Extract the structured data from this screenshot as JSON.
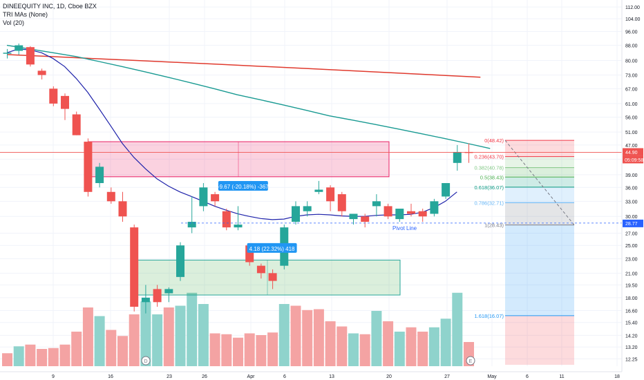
{
  "legend": {
    "title": "DINEEQUITY INC, 1D, Cboe BZX",
    "indicator": "TRI MAs (None)",
    "volume": "Vol (20)"
  },
  "price_axis": {
    "labels": [
      "112.00",
      "104.00",
      "96.00",
      "88.00",
      "80.00",
      "73.00",
      "67.00",
      "61.00",
      "56.00",
      "51.00",
      "47.00",
      "43.00",
      "39.00",
      "36.00",
      "33.00",
      "30.00",
      "27.00",
      "25.00",
      "23.00",
      "21.00",
      "19.50",
      "18.00",
      "16.60",
      "15.40",
      "14.20",
      "13.20",
      "12.25"
    ],
    "last_price": "44.90",
    "countdown": "05:09:58",
    "pivot_price": "28.77"
  },
  "time_axis": {
    "labels": [
      "9",
      "16",
      "23",
      "26",
      "Apr",
      "6",
      "13",
      "20",
      "27",
      "May",
      "6",
      "11",
      "18"
    ]
  },
  "annotations": {
    "measure_down": "-9.67 (-20.18%) -367",
    "measure_up": "4.18 (22.32%) 418",
    "pivot_line": "Pivot Line",
    "event_d": "D",
    "event_e": "E"
  },
  "fib_levels": [
    {
      "label": "0(48.42)"
    },
    {
      "label": "0.236(43.70)"
    },
    {
      "label": "0.382(40.78)"
    },
    {
      "label": "0.5(38.43)"
    },
    {
      "label": "0.618(36.07)"
    },
    {
      "label": "0.786(32.71)"
    },
    {
      "label": "1(28.43)"
    },
    {
      "label": "1.618(16.07)"
    }
  ],
  "colors": {
    "up": "#26a69a",
    "down": "#ef5350",
    "vol_up": "#8fd3cc",
    "vol_down": "#f4a3a3",
    "ma_blue": "#1e22aa",
    "ma_teal": "#199a92",
    "ma_red": "#e0392d",
    "label_blue": "#2196f3"
  },
  "chart_data": {
    "type": "candlestick",
    "title": "DINEEQUITY INC, 1D, Cboe BZX",
    "y_scale": "log",
    "ylim": [
      11.8,
      116
    ],
    "candles": [
      {
        "d": "Mar 2",
        "o": 84.0,
        "h": 86.0,
        "l": 81.0,
        "c": 84.0
      },
      {
        "d": "Mar 3",
        "o": 85.0,
        "h": 89.0,
        "l": 83.0,
        "c": 88.0
      },
      {
        "d": "Mar 4",
        "o": 87.0,
        "h": 87.5,
        "l": 77.0,
        "c": 78.0
      },
      {
        "d": "Mar 5",
        "o": 75.0,
        "h": 76.0,
        "l": 71.0,
        "c": 73.0
      },
      {
        "d": "Mar 6",
        "o": 67.0,
        "h": 68.0,
        "l": 60.0,
        "c": 61.0
      },
      {
        "d": "Mar 9",
        "o": 64.0,
        "h": 65.0,
        "l": 55.0,
        "c": 59.0
      },
      {
        "d": "Mar 10",
        "o": 57.0,
        "h": 58.0,
        "l": 50.0,
        "c": 50.0
      },
      {
        "d": "Mar 11",
        "o": 48.0,
        "h": 49.0,
        "l": 34.0,
        "c": 35.0
      },
      {
        "d": "Mar 12",
        "o": 37.0,
        "h": 42.0,
        "l": 36.0,
        "c": 41.0
      },
      {
        "d": "Mar 13",
        "o": 35.0,
        "h": 36.0,
        "l": 32.5,
        "c": 33.0
      },
      {
        "d": "Mar 16",
        "o": 33.0,
        "h": 35.0,
        "l": 29.0,
        "c": 30.0
      },
      {
        "d": "Mar 17",
        "o": 28.0,
        "h": 28.5,
        "l": 16.5,
        "c": 17.0
      },
      {
        "d": "Mar 18",
        "o": 17.5,
        "h": 19.5,
        "l": 16.3,
        "c": 18.0
      },
      {
        "d": "Mar 19",
        "o": 19.0,
        "h": 19.5,
        "l": 17.0,
        "c": 17.5
      },
      {
        "d": "Mar 20",
        "o": 18.5,
        "h": 19.2,
        "l": 17.5,
        "c": 19.0
      },
      {
        "d": "Mar 23",
        "o": 20.5,
        "h": 25.5,
        "l": 20.0,
        "c": 25.0
      },
      {
        "d": "Mar 24",
        "o": 28.0,
        "h": 34.0,
        "l": 27.0,
        "c": 29.0
      },
      {
        "d": "Mar 25",
        "o": 32.0,
        "h": 37.0,
        "l": 31.0,
        "c": 36.0
      },
      {
        "d": "Mar 26",
        "o": 34.5,
        "h": 35.0,
        "l": 32.0,
        "c": 33.0
      },
      {
        "d": "Mar 27",
        "o": 31.0,
        "h": 31.5,
        "l": 27.5,
        "c": 28.0
      },
      {
        "d": "Mar 30",
        "o": 28.0,
        "h": 32.0,
        "l": 27.5,
        "c": 28.5
      },
      {
        "d": "Mar 31",
        "o": 25.0,
        "h": 25.3,
        "l": 22.0,
        "c": 22.5
      },
      {
        "d": "Apr 1",
        "o": 22.0,
        "h": 22.3,
        "l": 20.3,
        "c": 21.0
      },
      {
        "d": "Apr 2",
        "o": 21.0,
        "h": 21.5,
        "l": 19.0,
        "c": 20.0
      },
      {
        "d": "Apr 3",
        "o": 22.0,
        "h": 28.5,
        "l": 21.5,
        "c": 28.0
      },
      {
        "d": "Apr 6",
        "o": 29.0,
        "h": 33.0,
        "l": 28.5,
        "c": 32.0
      },
      {
        "d": "Apr 7",
        "o": 31.0,
        "h": 33.0,
        "l": 30.0,
        "c": 32.0
      },
      {
        "d": "Apr 8",
        "o": 35.0,
        "h": 37.5,
        "l": 34.5,
        "c": 35.5
      },
      {
        "d": "Apr 9",
        "o": 36.0,
        "h": 36.5,
        "l": 31.0,
        "c": 33.0
      },
      {
        "d": "Apr 13",
        "o": 34.5,
        "h": 35.0,
        "l": 30.0,
        "c": 31.0
      },
      {
        "d": "Apr 14",
        "o": 29.5,
        "h": 30.0,
        "l": 28.5,
        "c": 30.5
      },
      {
        "d": "Apr 15",
        "o": 30.0,
        "h": 30.5,
        "l": 28.0,
        "c": 29.0
      },
      {
        "d": "Apr 16",
        "o": 32.0,
        "h": 34.5,
        "l": 30.0,
        "c": 33.0
      },
      {
        "d": "Apr 17",
        "o": 32.0,
        "h": 32.5,
        "l": 29.5,
        "c": 30.0
      },
      {
        "d": "Apr 20",
        "o": 29.5,
        "h": 31.0,
        "l": 29.0,
        "c": 31.5
      },
      {
        "d": "Apr 21",
        "o": 31.0,
        "h": 32.5,
        "l": 30.0,
        "c": 30.5
      },
      {
        "d": "Apr 22",
        "o": 31.0,
        "h": 31.5,
        "l": 29.0,
        "c": 30.0
      },
      {
        "d": "Apr 23",
        "o": 30.5,
        "h": 33.5,
        "l": 30.0,
        "c": 33.0
      },
      {
        "d": "Apr 24",
        "o": 34.0,
        "h": 37.0,
        "l": 33.5,
        "c": 37.0
      },
      {
        "d": "Apr 27",
        "o": 42.0,
        "h": 47.0,
        "l": 40.0,
        "c": 45.0
      },
      {
        "d": "Apr 28",
        "o": 45.0,
        "h": 47.5,
        "l": 42.0,
        "c": 44.9
      }
    ],
    "volume": [
      {
        "v": 1.5,
        "up": false
      },
      {
        "v": 2.3,
        "up": true
      },
      {
        "v": 2.5,
        "up": false
      },
      {
        "v": 2.0,
        "up": false
      },
      {
        "v": 2.1,
        "up": false
      },
      {
        "v": 2.5,
        "up": false
      },
      {
        "v": 4.0,
        "up": false
      },
      {
        "v": 6.8,
        "up": false
      },
      {
        "v": 5.8,
        "up": true
      },
      {
        "v": 4.2,
        "up": false
      },
      {
        "v": 3.5,
        "up": false
      },
      {
        "v": 6.0,
        "up": false
      },
      {
        "v": 7.5,
        "up": true
      },
      {
        "v": 6.0,
        "up": true
      },
      {
        "v": 6.8,
        "up": false
      },
      {
        "v": 7.0,
        "up": true
      },
      {
        "v": 8.5,
        "up": true
      },
      {
        "v": 7.2,
        "up": true
      },
      {
        "v": 3.8,
        "up": false
      },
      {
        "v": 3.7,
        "up": false
      },
      {
        "v": 3.3,
        "up": false
      },
      {
        "v": 3.8,
        "up": false
      },
      {
        "v": 3.6,
        "up": false
      },
      {
        "v": 3.9,
        "up": false
      },
      {
        "v": 7.2,
        "up": true
      },
      {
        "v": 7.0,
        "up": false
      },
      {
        "v": 6.5,
        "up": false
      },
      {
        "v": 6.6,
        "up": false
      },
      {
        "v": 5.2,
        "up": false
      },
      {
        "v": 4.6,
        "up": false
      },
      {
        "v": 3.8,
        "up": true
      },
      {
        "v": 3.7,
        "up": false
      },
      {
        "v": 6.4,
        "up": true
      },
      {
        "v": 5.2,
        "up": false
      },
      {
        "v": 4.0,
        "up": true
      },
      {
        "v": 4.5,
        "up": false
      },
      {
        "v": 4.0,
        "up": false
      },
      {
        "v": 4.5,
        "up": true
      },
      {
        "v": 5.5,
        "up": true
      },
      {
        "v": 8.5,
        "up": true
      },
      {
        "v": 2.8,
        "up": false
      }
    ],
    "ma_blue_values": [
      84.0,
      86.0,
      85.5,
      84.0,
      81.0,
      77.0,
      71.5,
      65.5,
      59.0,
      53.0,
      47.5,
      43.5,
      40.5,
      38.0,
      36.3,
      35.0,
      34.0,
      33.0,
      32.0,
      31.2,
      30.5,
      30.0,
      29.6,
      29.4,
      29.5,
      30.0,
      30.3,
      30.4,
      30.3,
      30.1,
      30.0,
      30.0,
      30.2,
      30.3,
      30.3,
      30.4,
      30.8,
      31.7,
      33.0,
      35.0
    ],
    "ma_teal_values": [
      88.0,
      86.0,
      84.0,
      82.0,
      79.5,
      77.0,
      74.5,
      72.0,
      69.5,
      67.0,
      64.5,
      62.5,
      60.5,
      58.5,
      56.5,
      55.0,
      53.5,
      52.0,
      50.5,
      49.0,
      47.5,
      46.0
    ],
    "ma_red_values": [
      83.0,
      82.0,
      81.0,
      80.0,
      79.0,
      78.0,
      77.0,
      76.0,
      75.0,
      74.0,
      73.0,
      72.0
    ],
    "zones": [
      {
        "name": "supply",
        "low": 38.5,
        "high": 48.0
      },
      {
        "name": "demand",
        "low": 18.3,
        "high": 22.8
      }
    ],
    "fib": {
      "high": 48.42,
      "low": 28.43
    },
    "measures": [
      {
        "text": "-9.67 (-20.18%) -367",
        "at": "Mar 26"
      },
      {
        "text": "4.18 (22.32%) 418",
        "at": "Apr 1"
      }
    ]
  }
}
